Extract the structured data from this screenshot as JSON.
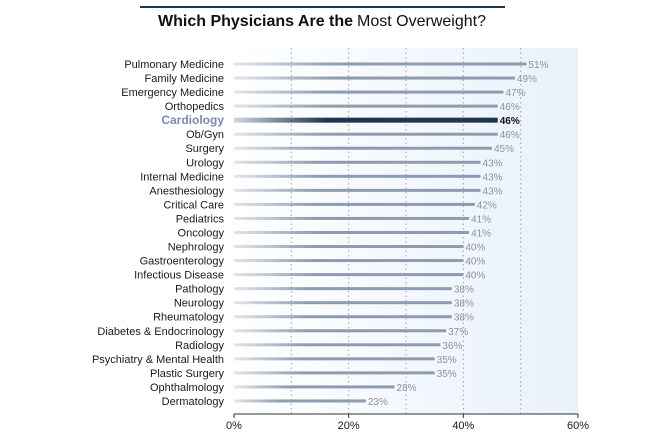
{
  "chart_data": {
    "type": "bar",
    "orientation": "horizontal",
    "title_bold": "Which Physicians Are the",
    "title_rest": "Most Overweight?",
    "categories": [
      "Pulmonary Medicine",
      "Family Medicine",
      "Emergency Medicine",
      "Orthopedics",
      "Cardiology",
      "Ob/Gyn",
      "Surgery",
      "Urology",
      "Internal Medicine",
      "Anesthesiology",
      "Critical Care",
      "Pediatrics",
      "Oncology",
      "Nephrology",
      "Gastroenterology",
      "Infectious Disease",
      "Pathology",
      "Neurology",
      "Rheumatology",
      "Diabetes & Endocrinology",
      "Radiology",
      "Psychiatry & Mental Health",
      "Plastic Surgery",
      "Ophthalmology",
      "Dermatology"
    ],
    "values": [
      51,
      49,
      47,
      46,
      46,
      46,
      45,
      43,
      43,
      43,
      42,
      41,
      41,
      40,
      40,
      40,
      38,
      38,
      38,
      37,
      36,
      35,
      35,
      28,
      23
    ],
    "value_labels": [
      "51%",
      "49%",
      "47%",
      "46%",
      "46%",
      "46%",
      "45%",
      "43%",
      "43%",
      "43%",
      "42%",
      "41%",
      "41%",
      "40%",
      "40%",
      "40%",
      "38%",
      "38%",
      "38%",
      "37%",
      "36%",
      "35%",
      "35%",
      "28%",
      "23%"
    ],
    "highlight": "Cardiology",
    "xlim": [
      0,
      60
    ],
    "xticks": [
      0,
      20,
      40,
      60
    ],
    "xtick_labels": [
      "0%",
      "20%",
      "40%",
      "60%"
    ],
    "grid": "vertical dotted every 10%",
    "colors": {
      "bar": "#8e9bb0",
      "bar_highlight": "#1f3550",
      "highlight_label": "#7d86b4",
      "title_rule": "#1f3550",
      "plot_background_end": "#e9f1fc"
    }
  }
}
